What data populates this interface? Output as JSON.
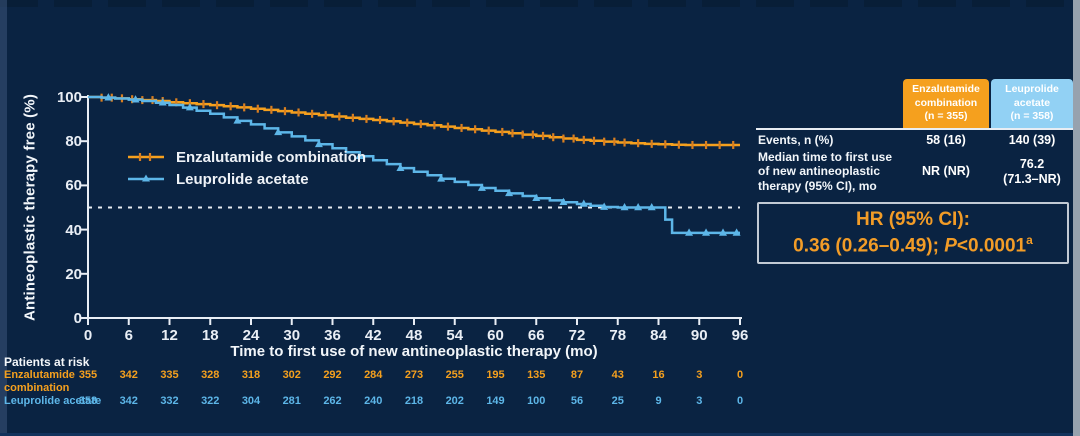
{
  "colors": {
    "background": "#0a2342",
    "enzalutamide_orange": "#f5a01e",
    "enzalutamide_censor": "#d97f20",
    "leuprolide_blue": "#5db6e8",
    "leuprolide_header_bg": "#92d1f4",
    "axis_white": "#e9eef5",
    "hr_text_orange": "#f29c27",
    "hr_border_gray": "#c2cad4"
  },
  "chart_data": {
    "type": "line",
    "subtype": "kaplan-meier-step",
    "title": "",
    "xlabel": "Time to first use of new antineoplastic therapy (mo)",
    "ylabel": "Antineoplastic therapy free (%)",
    "xlim": [
      0,
      96
    ],
    "ylim": [
      0,
      100
    ],
    "xticks": [
      0,
      6,
      12,
      18,
      24,
      30,
      36,
      42,
      48,
      54,
      60,
      66,
      72,
      78,
      84,
      90,
      96
    ],
    "yticks": [
      100,
      80,
      60,
      40,
      20,
      0
    ],
    "grid": false,
    "legend_position": "upper-left-inside",
    "reference_line": {
      "y": 50,
      "style": "dashed",
      "color": "#e8edf2"
    },
    "series": [
      {
        "name": "Enzalutamide combination",
        "color": "#f5a01e",
        "marker": "cross",
        "points": [
          [
            0,
            100
          ],
          [
            2,
            99.7
          ],
          [
            4,
            99.4
          ],
          [
            6,
            99
          ],
          [
            8,
            98.6
          ],
          [
            10,
            98.2
          ],
          [
            12,
            97.6
          ],
          [
            14,
            97.2
          ],
          [
            16,
            96.8
          ],
          [
            18,
            96.3
          ],
          [
            20,
            95.8
          ],
          [
            22,
            95.3
          ],
          [
            24,
            94.7
          ],
          [
            26,
            94.2
          ],
          [
            28,
            93.6
          ],
          [
            30,
            93
          ],
          [
            32,
            92.4
          ],
          [
            34,
            91.8
          ],
          [
            36,
            91.2
          ],
          [
            38,
            90.6
          ],
          [
            40,
            90.1
          ],
          [
            42,
            89.6
          ],
          [
            44,
            89
          ],
          [
            46,
            88.4
          ],
          [
            48,
            87.8
          ],
          [
            50,
            87.2
          ],
          [
            52,
            86.6
          ],
          [
            54,
            86
          ],
          [
            56,
            85.4
          ],
          [
            58,
            84.8
          ],
          [
            60,
            84.2
          ],
          [
            62,
            83.6
          ],
          [
            64,
            83
          ],
          [
            66,
            82.4
          ],
          [
            68,
            81.8
          ],
          [
            70,
            81.2
          ],
          [
            72,
            80.6
          ],
          [
            74,
            80.2
          ],
          [
            76,
            79.8
          ],
          [
            78,
            79.4
          ],
          [
            80,
            79.1
          ],
          [
            82,
            78.8
          ],
          [
            84,
            78.6
          ],
          [
            86,
            78.4
          ],
          [
            88,
            78.3
          ],
          [
            96,
            78.3
          ]
        ],
        "censor_x": [
          2,
          3.5,
          5,
          6.5,
          8,
          9.5,
          11,
          13,
          15,
          17,
          19,
          21,
          23,
          25,
          27,
          29,
          31,
          33,
          35,
          37,
          39,
          41,
          43,
          45,
          47,
          49,
          51,
          53,
          55,
          57,
          59,
          61,
          62.5,
          64,
          65.5,
          67,
          68.5,
          70,
          71.5,
          73,
          74.5,
          76,
          77.5,
          79,
          81,
          83,
          85,
          87,
          89,
          91,
          93,
          95
        ]
      },
      {
        "name": "Leuprolide acetate",
        "color": "#5db6e8",
        "marker": "triangle",
        "points": [
          [
            0,
            100
          ],
          [
            2,
            99.7
          ],
          [
            4,
            99.3
          ],
          [
            6,
            98.8
          ],
          [
            8,
            98.2
          ],
          [
            10,
            97.4
          ],
          [
            12,
            96.4
          ],
          [
            14,
            95.2
          ],
          [
            16,
            93.8
          ],
          [
            18,
            92.4
          ],
          [
            20,
            90.8
          ],
          [
            22,
            89.2
          ],
          [
            24,
            87.6
          ],
          [
            26,
            85.8
          ],
          [
            28,
            84
          ],
          [
            30,
            82.2
          ],
          [
            32,
            80.4
          ],
          [
            34,
            78.6
          ],
          [
            36,
            76.8
          ],
          [
            38,
            75
          ],
          [
            40,
            73.2
          ],
          [
            42,
            71.4
          ],
          [
            44,
            69.6
          ],
          [
            46,
            67.8
          ],
          [
            48,
            66.2
          ],
          [
            50,
            64.6
          ],
          [
            52,
            63
          ],
          [
            54,
            61.6
          ],
          [
            56,
            60.2
          ],
          [
            58,
            58.8
          ],
          [
            60,
            57.6
          ],
          [
            62,
            56.4
          ],
          [
            64,
            55.2
          ],
          [
            66,
            54.2
          ],
          [
            68,
            53.2
          ],
          [
            70,
            52.4
          ],
          [
            72,
            51.6
          ],
          [
            74,
            50.8
          ],
          [
            76,
            50.2
          ],
          [
            78,
            50
          ],
          [
            84,
            50
          ],
          [
            85,
            44.5
          ],
          [
            86,
            38.5
          ],
          [
            96,
            38.5
          ]
        ],
        "censor_x": [
          3,
          7,
          11,
          15,
          22,
          28,
          34,
          40,
          46,
          52,
          58,
          62,
          66,
          70,
          73,
          76,
          79,
          81,
          83,
          88.5,
          91,
          93.5,
          95.5
        ]
      }
    ]
  },
  "legend": [
    {
      "label": "Enzalutamide combination"
    },
    {
      "label": "Leuprolide acetate"
    }
  ],
  "risk_table": {
    "title": "Patients at risk",
    "timepoints": [
      0,
      6,
      12,
      18,
      24,
      30,
      36,
      42,
      48,
      54,
      60,
      66,
      72,
      78,
      84,
      90,
      96
    ],
    "rows": [
      {
        "label": "Enzalutamide\ncombination",
        "color": "#f5a01e",
        "counts": [
          355,
          342,
          335,
          328,
          318,
          302,
          292,
          284,
          273,
          255,
          195,
          135,
          87,
          43,
          16,
          3,
          0
        ]
      },
      {
        "label": "Leuprolide acetate",
        "color": "#5db6e8",
        "counts": [
          358,
          342,
          332,
          322,
          304,
          281,
          262,
          240,
          218,
          202,
          149,
          100,
          56,
          25,
          9,
          3,
          0
        ]
      }
    ]
  },
  "summary_table": {
    "columns": [
      {
        "header": "Enzalutamide\ncombination\n(n = 355)",
        "bg": "#f5a01e"
      },
      {
        "header": "Leuprolide\nacetate\n(n = 358)",
        "bg": "#92d1f4"
      }
    ],
    "rows": [
      {
        "label": "Events, n (%)",
        "values": [
          "58 (16)",
          "140 (39)"
        ]
      },
      {
        "label": "Median time to first use\nof new antineoplastic\ntherapy (95% CI), mo",
        "values": [
          "NR (NR)",
          "76.2\n(71.3–NR)"
        ]
      }
    ]
  },
  "hr_box": {
    "line1": "HR (95% CI):",
    "value_prefix": "0.36 (0.26–0.49); ",
    "p_label": "P",
    "p_value": "<0.0001",
    "footnote_marker": "a"
  }
}
